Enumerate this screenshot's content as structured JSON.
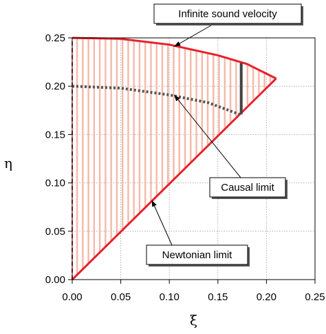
{
  "chart_data": {
    "type": "area",
    "xlabel": "ξ",
    "ylabel": "η",
    "xlim": [
      0,
      0.25
    ],
    "ylim": [
      0,
      0.25
    ],
    "grid": true,
    "x_ticks": [
      "0.00",
      "0.05",
      "0.10",
      "0.15",
      "0.20",
      "0.25"
    ],
    "y_ticks": [
      "0.00",
      "0.05",
      "0.10",
      "0.15",
      "0.20",
      "0.25"
    ],
    "series": [
      {
        "style": "solid-red",
        "color": "#e8202a",
        "points": [
          [
            0,
            0.25
          ],
          [
            0.05,
            0.249
          ],
          [
            0.1,
            0.243
          ],
          [
            0.15,
            0.232
          ],
          [
            0.18,
            0.223
          ],
          [
            0.21,
            0.208
          ]
        ]
      },
      {
        "style": "solid-red",
        "color": "#e8202a",
        "points": [
          [
            0,
            0
          ],
          [
            0.21,
            0.208
          ]
        ]
      },
      {
        "style": "dotted-grey",
        "color": "#555555",
        "points": [
          [
            0,
            0.2
          ],
          [
            0.05,
            0.198
          ],
          [
            0.1,
            0.191
          ],
          [
            0.14,
            0.183
          ],
          [
            0.172,
            0.171
          ]
        ]
      },
      {
        "style": "dashed-red",
        "color": "#e8202a",
        "points": [
          [
            0,
            0
          ],
          [
            0,
            0.25
          ]
        ]
      }
    ],
    "marker_segment": {
      "color": "#444444",
      "points": [
        [
          0.174,
          0.171
        ],
        [
          0.174,
          0.224
        ]
      ]
    },
    "shaded_region": {
      "color": "#f5b8a8",
      "description_points_upper": [
        [
          0,
          0.25
        ],
        [
          0.05,
          0.249
        ],
        [
          0.1,
          0.243
        ],
        [
          0.15,
          0.232
        ],
        [
          0.18,
          0.223
        ],
        [
          0.21,
          0.208
        ]
      ]
    },
    "annotations": [
      {
        "text": "Infinite sound velocity",
        "target": [
          0.105,
          0.241
        ]
      },
      {
        "text": "Causal limit",
        "target": [
          0.105,
          0.191
        ]
      },
      {
        "text": "Newtonian limit",
        "target": [
          0.082,
          0.082
        ]
      }
    ]
  }
}
